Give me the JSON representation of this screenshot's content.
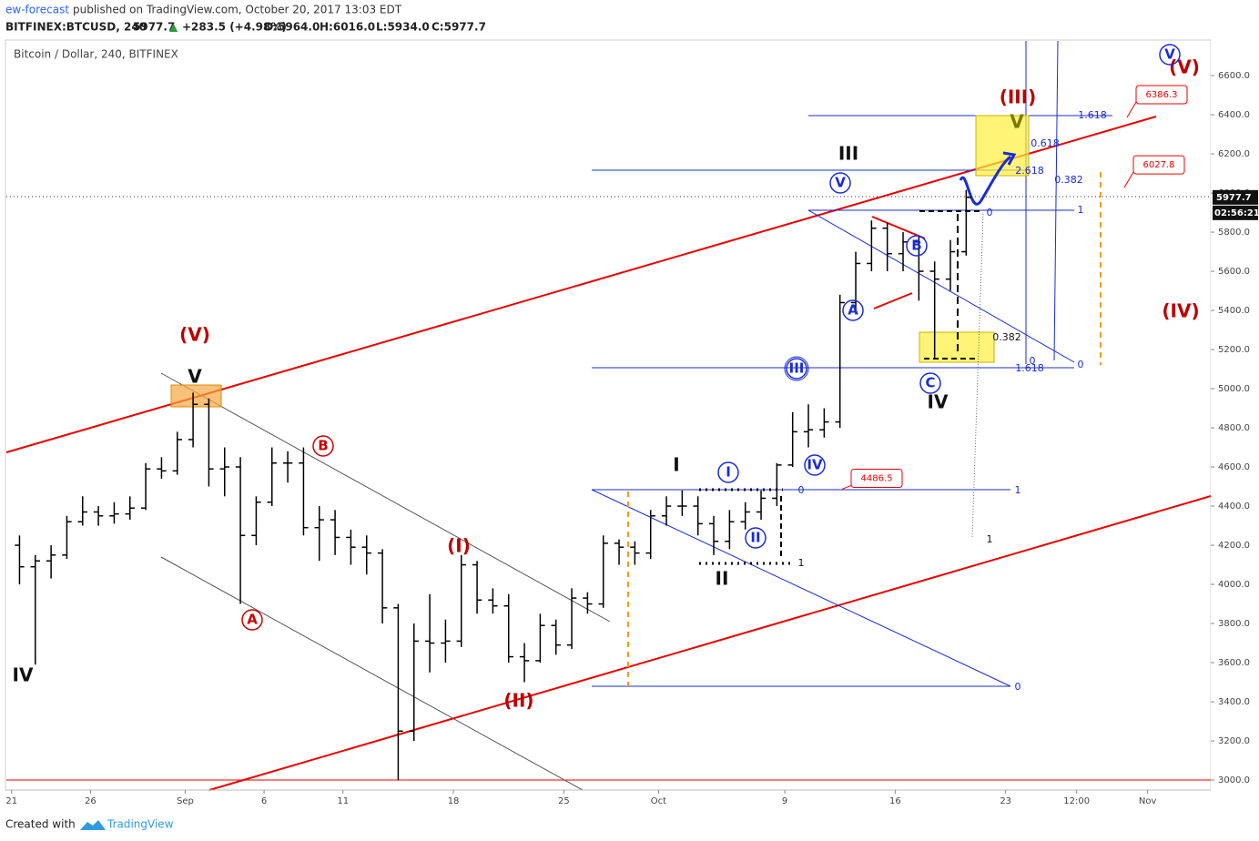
{
  "header": {
    "publisher": "ew-forecast",
    "published": "published on TradingView.com, October 20, 2017 13:03 EDT",
    "symbol": "BITFINEX:BTCUSD, 240",
    "last": "5977.7",
    "arrow": "▲",
    "change": "+283.5 (+4.98%)",
    "open": "O:5964.0",
    "high": "H:6016.0",
    "low": "L:5934.0",
    "close": "C:5977.7"
  },
  "footer": {
    "created_with": "Created with",
    "brand": "TradingView"
  },
  "chart_data": {
    "type": "candlestick",
    "title": "Bitcoin / Dollar, 240, BITFINEX",
    "color": "#000000",
    "x": [
      "2017-08-21",
      "2017-08-22",
      "2017-08-23",
      "2017-08-24",
      "2017-08-25",
      "2017-08-26",
      "2017-08-27",
      "2017-08-28",
      "2017-08-29",
      "2017-08-30",
      "2017-08-31",
      "2017-09-01",
      "2017-09-02",
      "2017-09-03",
      "2017-09-04",
      "2017-09-05",
      "2017-09-06",
      "2017-09-07",
      "2017-09-08",
      "2017-09-09",
      "2017-09-10",
      "2017-09-11",
      "2017-09-12",
      "2017-09-13",
      "2017-09-14",
      "2017-09-15",
      "2017-09-16",
      "2017-09-17",
      "2017-09-18",
      "2017-09-19",
      "2017-09-20",
      "2017-09-21",
      "2017-09-22",
      "2017-09-23",
      "2017-09-24",
      "2017-09-25",
      "2017-09-26",
      "2017-09-27",
      "2017-09-28",
      "2017-09-29",
      "2017-09-30",
      "2017-10-01",
      "2017-10-02",
      "2017-10-03",
      "2017-10-04",
      "2017-10-05",
      "2017-10-06",
      "2017-10-07",
      "2017-10-08",
      "2017-10-09",
      "2017-10-10",
      "2017-10-11",
      "2017-10-12",
      "2017-10-13",
      "2017-10-14",
      "2017-10-15",
      "2017-10-16",
      "2017-10-17",
      "2017-10-18",
      "2017-10-19",
      "2017-10-20"
    ],
    "open": [
      4200,
      4090,
      4120,
      4150,
      4320,
      4370,
      4350,
      4360,
      4390,
      4590,
      4580,
      4740,
      4920,
      4590,
      4600,
      4250,
      4420,
      4620,
      4620,
      4290,
      4330,
      4240,
      4190,
      4160,
      3880,
      3250,
      3710,
      3700,
      3710,
      4100,
      3920,
      3890,
      3630,
      3610,
      3790,
      3690,
      3930,
      3900,
      4210,
      4190,
      4160,
      4350,
      4400,
      4400,
      4310,
      4220,
      4320,
      4370,
      4440,
      4610,
      4780,
      4790,
      4830,
      5440,
      5640,
      5820,
      5690,
      5750,
      5600,
      5560,
      5700
    ],
    "high": [
      4250,
      4150,
      4200,
      4350,
      4450,
      4400,
      4420,
      4450,
      4620,
      4650,
      4780,
      4980,
      4950,
      4700,
      4650,
      4450,
      4700,
      4680,
      4700,
      4400,
      4380,
      4280,
      4250,
      4180,
      3900,
      3800,
      3950,
      3820,
      4150,
      4120,
      3980,
      3950,
      3700,
      3850,
      3820,
      3980,
      3960,
      4250,
      4230,
      4220,
      4380,
      4450,
      4480,
      4450,
      4350,
      4380,
      4420,
      4480,
      4620,
      4880,
      4920,
      4900,
      5480,
      5700,
      5860,
      5850,
      5800,
      5780,
      5650,
      5760,
      6016
    ],
    "low": [
      4000,
      3590,
      4030,
      4130,
      4300,
      4300,
      4310,
      4330,
      4380,
      4540,
      4560,
      4700,
      4500,
      4450,
      3900,
      4200,
      4400,
      4520,
      4250,
      4120,
      4150,
      4100,
      4050,
      3800,
      3000,
      3200,
      3550,
      3600,
      3680,
      3850,
      3850,
      3600,
      3500,
      3600,
      3640,
      3670,
      3850,
      3880,
      4100,
      4100,
      4130,
      4300,
      4350,
      4250,
      4150,
      4180,
      4280,
      4330,
      4400,
      4600,
      4700,
      4750,
      4800,
      5380,
      5600,
      5600,
      5600,
      5450,
      5150,
      5500,
      5680
    ],
    "close": [
      4090,
      4120,
      4150,
      4320,
      4370,
      4350,
      4360,
      4390,
      4590,
      4580,
      4740,
      4920,
      4590,
      4600,
      4250,
      4420,
      4620,
      4620,
      4290,
      4330,
      4240,
      4190,
      4160,
      3880,
      3250,
      3710,
      3700,
      3710,
      4100,
      3920,
      3890,
      3630,
      3610,
      3790,
      3690,
      3930,
      3900,
      4210,
      4190,
      4160,
      4350,
      4400,
      4400,
      4310,
      4220,
      4320,
      4370,
      4440,
      4610,
      4780,
      4790,
      4830,
      5440,
      5640,
      5820,
      5690,
      5750,
      5600,
      5560,
      5700,
      5977.7
    ],
    "xlim": [
      "2017-08-20 16:00",
      "2017-11-05 00:00"
    ],
    "xticks": [
      {
        "value": "2017-08-21",
        "label": "21"
      },
      {
        "value": "2017-08-26",
        "label": "26"
      },
      {
        "value": "2017-09-01",
        "label": "Sep"
      },
      {
        "value": "2017-09-06",
        "label": "6"
      },
      {
        "value": "2017-09-11",
        "label": "11"
      },
      {
        "value": "2017-09-18",
        "label": "18"
      },
      {
        "value": "2017-09-25",
        "label": "25"
      },
      {
        "value": "2017-10-01",
        "label": "Oct"
      },
      {
        "value": "2017-10-09",
        "label": "9"
      },
      {
        "value": "2017-10-16",
        "label": "16"
      },
      {
        "value": "2017-10-23",
        "label": "23"
      },
      {
        "value": "2017-10-27 12:00",
        "label": "12:00"
      },
      {
        "value": "2017-11-01",
        "label": "Nov"
      }
    ],
    "ylim": [
      2949,
      6777
    ],
    "yticks": [
      {
        "value": 3000,
        "label": "3000.0"
      },
      {
        "value": 3200,
        "label": "3200.0"
      },
      {
        "value": 3400,
        "label": "3400.0"
      },
      {
        "value": 3600,
        "label": "3600.0"
      },
      {
        "value": 3800,
        "label": "3800.0"
      },
      {
        "value": 4000,
        "label": "4000.0"
      },
      {
        "value": 4200,
        "label": "4200.0"
      },
      {
        "value": 4400,
        "label": "4400.0"
      },
      {
        "value": 4600,
        "label": "4600.0"
      },
      {
        "value": 4800,
        "label": "4800.0"
      },
      {
        "value": 5000,
        "label": "5000.0"
      },
      {
        "value": 5200,
        "label": "5200.0"
      },
      {
        "value": 5400,
        "label": "5400.0"
      },
      {
        "value": 5600,
        "label": "5600.0"
      },
      {
        "value": 5800,
        "label": "5800.0"
      },
      {
        "value": 6000,
        "label": "6000.0"
      },
      {
        "value": 6200,
        "label": "6200.0"
      },
      {
        "value": 6400,
        "label": "6400.0"
      },
      {
        "value": 6600,
        "label": "6600.0"
      }
    ],
    "last_price": 5977.7,
    "countdown": "02:56:21",
    "price_labels": [
      6386.3,
      6027.8,
      4486.5
    ],
    "wave_labels": [
      "(V)",
      "V",
      "IV",
      "(V)",
      "V",
      "(III)",
      "V",
      "III",
      "V",
      "B",
      "A",
      "III",
      "C",
      "IV",
      "(IV)",
      "IV",
      "I",
      "I",
      "II",
      "II",
      "B",
      "(I)",
      "A",
      "(II)"
    ],
    "fib_labels": [
      "1.618",
      "0.618",
      "2.618",
      "0.382",
      "0",
      "1",
      "0.382",
      "0",
      "1.618",
      "0",
      "0",
      "1",
      "1",
      "0",
      "1"
    ]
  }
}
